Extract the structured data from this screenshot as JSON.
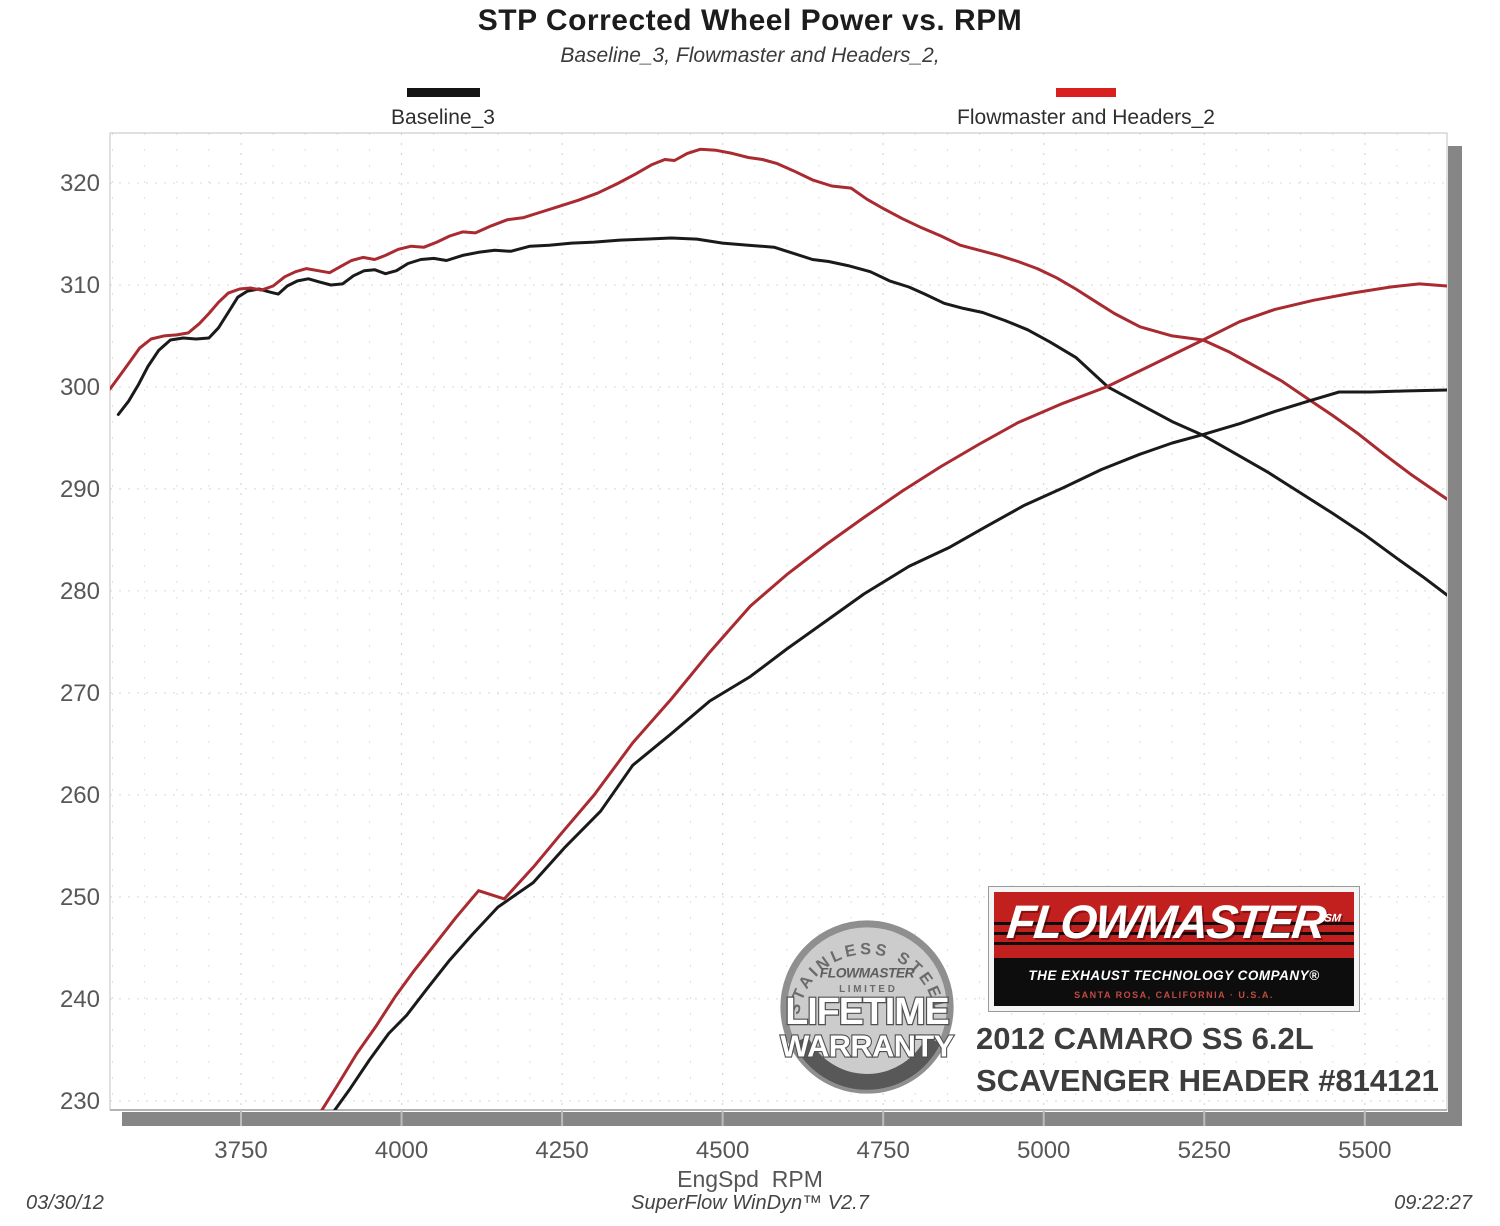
{
  "title": "STP Corrected Wheel Power vs. RPM",
  "subtitle": "Baseline_3, Flowmaster and Headers_2,",
  "legend": {
    "baseline": {
      "label": "Baseline_3",
      "color": "#141414"
    },
    "flowmaster": {
      "label": "Flowmaster and Headers_2",
      "color": "#d8201f"
    }
  },
  "chart_data": {
    "type": "line",
    "title": "STP Corrected Wheel Power vs. RPM",
    "xlabel": "EngSpd  RPM",
    "ylabel": "",
    "xlim": [
      3546,
      5628
    ],
    "ylim": [
      229.1,
      324.9
    ],
    "x_ticks": [
      3750,
      4000,
      4250,
      4500,
      4750,
      5000,
      5250,
      5500
    ],
    "y_ticks": [
      230,
      240,
      250,
      260,
      270,
      280,
      290,
      300,
      310,
      320
    ],
    "minor_x_step": 50,
    "grid": "dotted",
    "legend_position": "top",
    "series": [
      {
        "name": "Baseline_3 (power, falling)",
        "color": "#1a1a1a",
        "points": [
          [
            3559,
            297.3
          ],
          [
            3575,
            298.6
          ],
          [
            3590,
            300.2
          ],
          [
            3605,
            302.0
          ],
          [
            3622,
            303.6
          ],
          [
            3640,
            304.6
          ],
          [
            3660,
            304.8
          ],
          [
            3680,
            304.7
          ],
          [
            3700,
            304.8
          ],
          [
            3715,
            305.8
          ],
          [
            3730,
            307.3
          ],
          [
            3745,
            308.8
          ],
          [
            3760,
            309.4
          ],
          [
            3778,
            309.6
          ],
          [
            3795,
            309.3
          ],
          [
            3808,
            309.1
          ],
          [
            3822,
            309.9
          ],
          [
            3838,
            310.4
          ],
          [
            3855,
            310.6
          ],
          [
            3872,
            310.3
          ],
          [
            3890,
            310.0
          ],
          [
            3908,
            310.1
          ],
          [
            3925,
            310.9
          ],
          [
            3942,
            311.4
          ],
          [
            3958,
            311.5
          ],
          [
            3975,
            311.1
          ],
          [
            3992,
            311.4
          ],
          [
            4010,
            312.1
          ],
          [
            4030,
            312.5
          ],
          [
            4050,
            312.6
          ],
          [
            4070,
            312.4
          ],
          [
            4095,
            312.9
          ],
          [
            4120,
            313.2
          ],
          [
            4145,
            313.4
          ],
          [
            4170,
            313.3
          ],
          [
            4200,
            313.8
          ],
          [
            4230,
            313.9
          ],
          [
            4265,
            314.1
          ],
          [
            4300,
            314.2
          ],
          [
            4340,
            314.4
          ],
          [
            4380,
            314.5
          ],
          [
            4420,
            314.6
          ],
          [
            4460,
            314.5
          ],
          [
            4500,
            314.1
          ],
          [
            4540,
            313.9
          ],
          [
            4580,
            313.7
          ],
          [
            4610,
            313.1
          ],
          [
            4640,
            312.5
          ],
          [
            4665,
            312.3
          ],
          [
            4695,
            311.9
          ],
          [
            4730,
            311.3
          ],
          [
            4760,
            310.4
          ],
          [
            4790,
            309.8
          ],
          [
            4815,
            309.1
          ],
          [
            4845,
            308.2
          ],
          [
            4875,
            307.7
          ],
          [
            4905,
            307.3
          ],
          [
            4940,
            306.5
          ],
          [
            4975,
            305.6
          ],
          [
            5010,
            304.4
          ],
          [
            5050,
            302.9
          ],
          [
            5100,
            300.0
          ],
          [
            5150,
            298.3
          ],
          [
            5200,
            296.6
          ],
          [
            5250,
            295.2
          ],
          [
            5300,
            293.4
          ],
          [
            5350,
            291.6
          ],
          [
            5400,
            289.6
          ],
          [
            5450,
            287.6
          ],
          [
            5500,
            285.5
          ],
          [
            5550,
            283.2
          ],
          [
            5590,
            281.4
          ],
          [
            5628,
            279.6
          ]
        ]
      },
      {
        "name": "Flowmaster and Headers_2 (power, falling)",
        "color": "#a92a30",
        "points": [
          [
            3546,
            299.8
          ],
          [
            3560,
            301.0
          ],
          [
            3575,
            302.3
          ],
          [
            3592,
            303.8
          ],
          [
            3610,
            304.7
          ],
          [
            3630,
            305.0
          ],
          [
            3650,
            305.1
          ],
          [
            3668,
            305.3
          ],
          [
            3685,
            306.2
          ],
          [
            3700,
            307.2
          ],
          [
            3715,
            308.3
          ],
          [
            3730,
            309.2
          ],
          [
            3748,
            309.6
          ],
          [
            3765,
            309.7
          ],
          [
            3782,
            309.5
          ],
          [
            3800,
            309.9
          ],
          [
            3818,
            310.8
          ],
          [
            3835,
            311.3
          ],
          [
            3852,
            311.6
          ],
          [
            3870,
            311.4
          ],
          [
            3888,
            311.2
          ],
          [
            3905,
            311.8
          ],
          [
            3922,
            312.4
          ],
          [
            3940,
            312.7
          ],
          [
            3958,
            312.5
          ],
          [
            3975,
            312.9
          ],
          [
            3995,
            313.5
          ],
          [
            4015,
            313.8
          ],
          [
            4035,
            313.7
          ],
          [
            4055,
            314.2
          ],
          [
            4075,
            314.8
          ],
          [
            4095,
            315.2
          ],
          [
            4115,
            315.1
          ],
          [
            4140,
            315.8
          ],
          [
            4165,
            316.4
          ],
          [
            4190,
            316.6
          ],
          [
            4215,
            317.1
          ],
          [
            4245,
            317.7
          ],
          [
            4275,
            318.3
          ],
          [
            4305,
            319.0
          ],
          [
            4335,
            319.9
          ],
          [
            4365,
            320.9
          ],
          [
            4390,
            321.8
          ],
          [
            4410,
            322.3
          ],
          [
            4425,
            322.2
          ],
          [
            4445,
            322.9
          ],
          [
            4465,
            323.3
          ],
          [
            4490,
            323.2
          ],
          [
            4515,
            322.9
          ],
          [
            4540,
            322.5
          ],
          [
            4562,
            322.3
          ],
          [
            4585,
            321.9
          ],
          [
            4610,
            321.2
          ],
          [
            4640,
            320.3
          ],
          [
            4670,
            319.7
          ],
          [
            4700,
            319.5
          ],
          [
            4725,
            318.4
          ],
          [
            4750,
            317.5
          ],
          [
            4780,
            316.5
          ],
          [
            4810,
            315.6
          ],
          [
            4840,
            314.8
          ],
          [
            4870,
            313.9
          ],
          [
            4900,
            313.4
          ],
          [
            4930,
            312.9
          ],
          [
            4960,
            312.3
          ],
          [
            4990,
            311.6
          ],
          [
            5020,
            310.7
          ],
          [
            5050,
            309.6
          ],
          [
            5080,
            308.4
          ],
          [
            5110,
            307.2
          ],
          [
            5150,
            305.9
          ],
          [
            5200,
            305.0
          ],
          [
            5248,
            304.6
          ],
          [
            5290,
            303.4
          ],
          [
            5330,
            302.0
          ],
          [
            5370,
            300.6
          ],
          [
            5410,
            298.9
          ],
          [
            5450,
            297.2
          ],
          [
            5490,
            295.4
          ],
          [
            5530,
            293.4
          ],
          [
            5570,
            291.5
          ],
          [
            5600,
            290.2
          ],
          [
            5628,
            289.0
          ]
        ]
      },
      {
        "name": "Baseline_3 (rising)",
        "color": "#1a1a1a",
        "points": [
          [
            3896,
            229.1
          ],
          [
            3920,
            231.2
          ],
          [
            3950,
            234.0
          ],
          [
            3980,
            236.6
          ],
          [
            4008,
            238.4
          ],
          [
            4040,
            241.0
          ],
          [
            4075,
            243.8
          ],
          [
            4110,
            246.3
          ],
          [
            4150,
            249.0
          ],
          [
            4205,
            251.4
          ],
          [
            4255,
            254.9
          ],
          [
            4310,
            258.4
          ],
          [
            4360,
            262.9
          ],
          [
            4420,
            266.0
          ],
          [
            4480,
            269.2
          ],
          [
            4543,
            271.6
          ],
          [
            4600,
            274.3
          ],
          [
            4660,
            277.0
          ],
          [
            4720,
            279.7
          ],
          [
            4790,
            282.4
          ],
          [
            4854,
            284.3
          ],
          [
            4910,
            286.3
          ],
          [
            4970,
            288.4
          ],
          [
            5030,
            290.1
          ],
          [
            5090,
            291.9
          ],
          [
            5150,
            293.4
          ],
          [
            5200,
            294.5
          ],
          [
            5246,
            295.3
          ],
          [
            5305,
            296.4
          ],
          [
            5360,
            297.6
          ],
          [
            5417,
            298.7
          ],
          [
            5460,
            299.5
          ],
          [
            5510,
            299.5
          ],
          [
            5560,
            299.6
          ],
          [
            5628,
            299.7
          ]
        ]
      },
      {
        "name": "Flowmaster and Headers_2 (rising)",
        "color": "#a92a30",
        "points": [
          [
            3876,
            229.1
          ],
          [
            3900,
            231.5
          ],
          [
            3930,
            234.6
          ],
          [
            3960,
            237.3
          ],
          [
            3990,
            240.2
          ],
          [
            4020,
            242.8
          ],
          [
            4050,
            245.2
          ],
          [
            4085,
            248.0
          ],
          [
            4120,
            250.6
          ],
          [
            4160,
            249.8
          ],
          [
            4205,
            252.9
          ],
          [
            4250,
            256.3
          ],
          [
            4300,
            260.0
          ],
          [
            4360,
            265.1
          ],
          [
            4420,
            269.4
          ],
          [
            4480,
            274.0
          ],
          [
            4543,
            278.5
          ],
          [
            4600,
            281.6
          ],
          [
            4660,
            284.5
          ],
          [
            4720,
            287.2
          ],
          [
            4780,
            289.8
          ],
          [
            4840,
            292.2
          ],
          [
            4900,
            294.4
          ],
          [
            4960,
            296.5
          ],
          [
            5030,
            298.4
          ],
          [
            5098,
            300.0
          ],
          [
            5170,
            302.2
          ],
          [
            5248,
            304.6
          ],
          [
            5305,
            306.4
          ],
          [
            5360,
            307.6
          ],
          [
            5420,
            308.5
          ],
          [
            5480,
            309.2
          ],
          [
            5540,
            309.8
          ],
          [
            5585,
            310.1
          ],
          [
            5628,
            309.9
          ]
        ]
      }
    ]
  },
  "xaxis_title": "EngSpd  RPM",
  "footer": {
    "date": "03/30/12",
    "software": "SuperFlow WinDyn™ V2.7",
    "time": "09:22:27"
  },
  "logo": {
    "brand": "FLOWMASTER",
    "sm": "SM",
    "tagline": "THE EXHAUST TECHNOLOGY COMPANY®",
    "address": "SANTA ROSA, CALIFORNIA · U.S.A.",
    "red": "#c1201f"
  },
  "badge": {
    "arc_top": "STAINLESS STEEL",
    "brand": "FLOWMASTER",
    "limited": "L I M I T E D",
    "line1": "LIFETIME",
    "line2": "WARRANTY"
  },
  "vehicle": {
    "line1": "2012 CAMARO SS 6.2L",
    "line2": "SCAVENGER HEADER #814121"
  }
}
